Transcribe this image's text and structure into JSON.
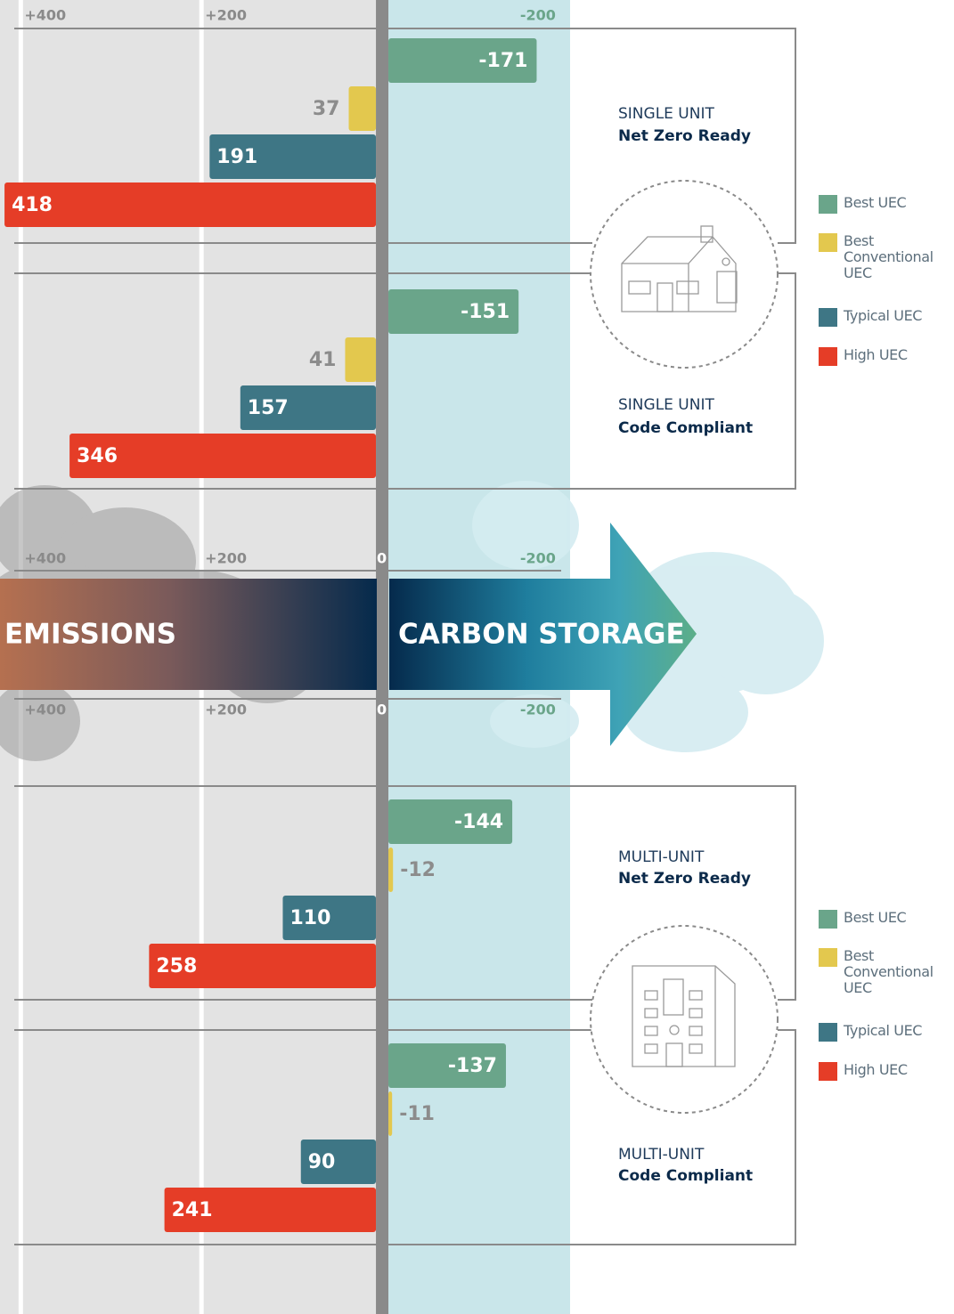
{
  "chart_data": {
    "type": "bar",
    "orientation": "horizontal",
    "annotations": {
      "left": "EMISSIONS",
      "right": "CARBON STORAGE"
    },
    "categories": [
      {
        "line1": "SINGLE UNIT",
        "line2": "Net Zero Ready"
      },
      {
        "line1": "SINGLE UNIT",
        "line2": "Code Compliant"
      },
      {
        "line1": "MULTI-UNIT",
        "line2": "Net Zero Ready"
      },
      {
        "line1": "MULTI-UNIT",
        "line2": "Code Compliant"
      }
    ],
    "series": [
      {
        "name": "Best UEC",
        "color": "#6aa58a",
        "values": [
          -171,
          -151,
          -144,
          -137
        ]
      },
      {
        "name": "Best Conventional UEC",
        "color": "#e3c84e",
        "values": [
          37,
          41,
          -12,
          -11
        ]
      },
      {
        "name": "Typical UEC",
        "color": "#3e7685",
        "values": [
          191,
          157,
          110,
          90
        ]
      },
      {
        "name": "High UEC",
        "color": "#e53d27",
        "values": [
          418,
          346,
          258,
          241
        ]
      }
    ],
    "xlim": [
      423,
      -208
    ],
    "xticks": [
      {
        "value": 400,
        "label": "+400"
      },
      {
        "value": 200,
        "label": "+200"
      },
      0,
      -200
    ],
    "grid": true
  }
}
